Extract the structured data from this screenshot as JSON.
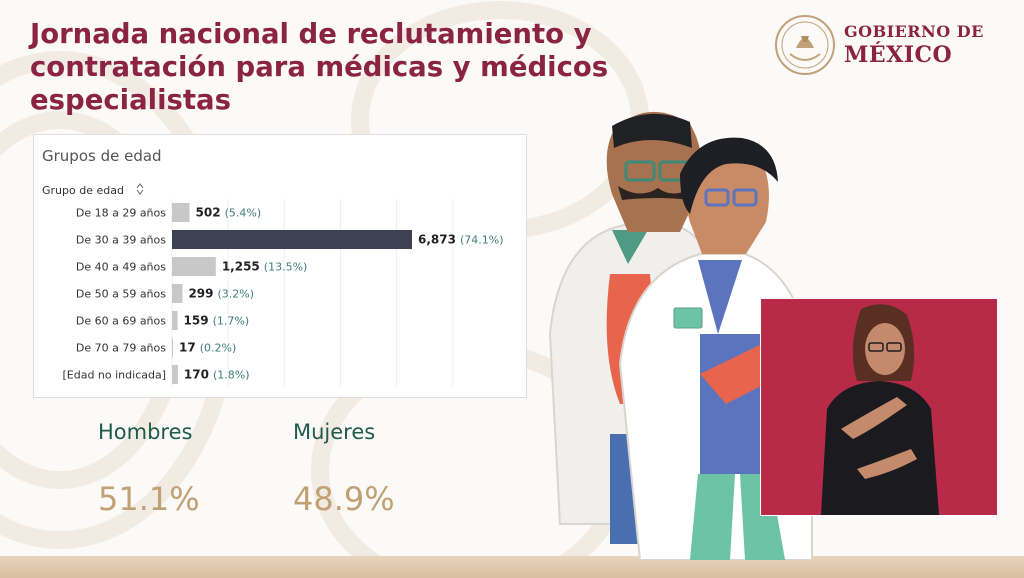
{
  "header": {
    "title_lines": [
      "Jornada nacional de reclutamiento y",
      "contratación para médicas y médicos",
      "especialistas"
    ]
  },
  "logo": {
    "line1": "GOBIERNO DE",
    "line2": "MÉXICO"
  },
  "chart_data": {
    "type": "bar",
    "orientation": "horizontal",
    "title": "Grupos de edad",
    "row_header": "Grupo de edad",
    "categories": [
      "De 18 a 29 años",
      "De 30 a 39 años",
      "De 40 a 49 años",
      "De 50 a 59 años",
      "De 60 a 69 años",
      "De 70 a 79 años",
      "[Edad no indicada]"
    ],
    "values": [
      502,
      6873,
      1255,
      299,
      159,
      17,
      170
    ],
    "value_labels": [
      "502",
      "6,873",
      "1,255",
      "299",
      "159",
      "17",
      "170"
    ],
    "percent_labels": [
      "(5.4%)",
      "(74.1%)",
      "(13.5%)",
      "(3.2%)",
      "(1.7%)",
      "(0.2%)",
      "(1.8%)"
    ],
    "highlight_index": 1,
    "colors": {
      "bar": "#c8c8c8",
      "highlight": "#3c4252",
      "percent_text": "#3e7d78"
    },
    "grid": true,
    "legend": "none"
  },
  "stats": {
    "men_label": "Hombres",
    "men_value": "51.1%",
    "women_label": "Mujeres",
    "women_value": "48.9%"
  },
  "colors": {
    "title": "#8a2344",
    "stat_label": "#1f5a4c",
    "stat_value": "#c1a173",
    "interpreter_bg": "#b82a48"
  }
}
